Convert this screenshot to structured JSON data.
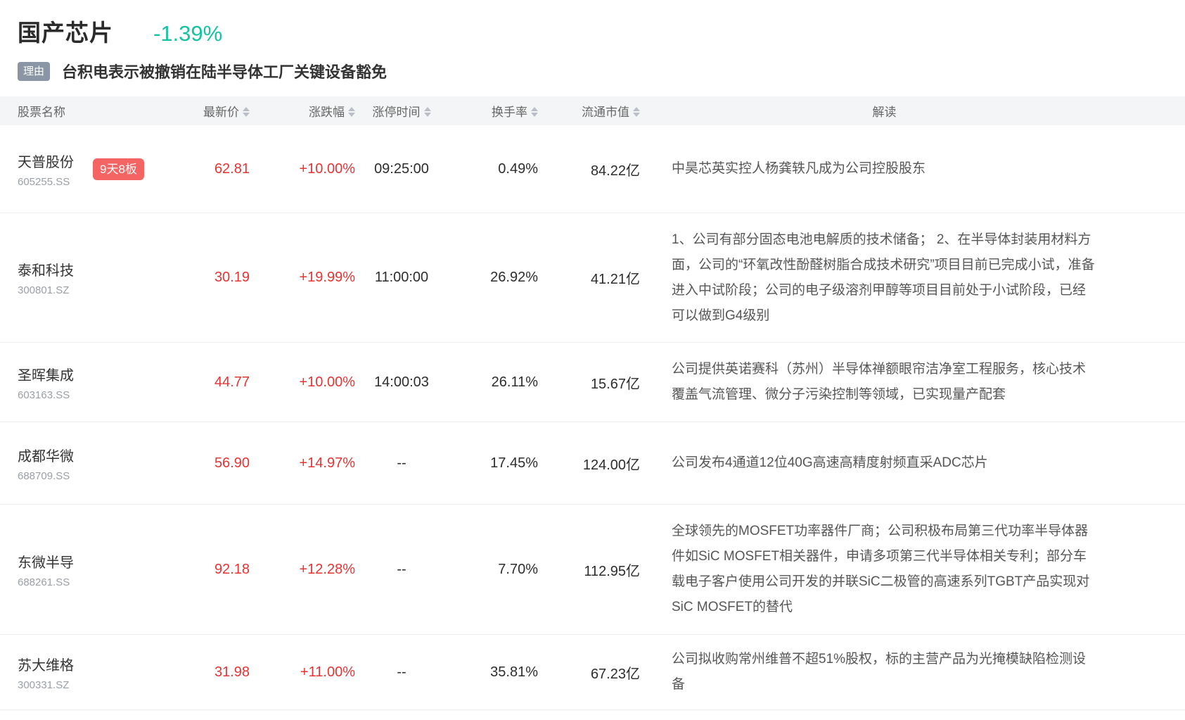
{
  "header": {
    "sector_name": "国产芯片",
    "sector_change": "-1.39%",
    "reason_badge_label": "理由",
    "reason_text": "台积电表示被撤销在陆半导体工厂关键设备豁免"
  },
  "colors": {
    "sector_change_green": "#16c3a0",
    "price_up_red": "#e83333",
    "streak_badge_red": "#f46462",
    "reason_badge_gray": "#8a95a5",
    "table_header_bg": "#f4f5f6"
  },
  "table": {
    "columns": [
      {
        "key": "name",
        "label": "股票名称",
        "sortable": false
      },
      {
        "key": "price",
        "label": "最新价",
        "sortable": true
      },
      {
        "key": "change",
        "label": "涨跌幅",
        "sortable": true
      },
      {
        "key": "limit_time",
        "label": "涨停时间",
        "sortable": true
      },
      {
        "key": "turnover",
        "label": "换手率",
        "sortable": true
      },
      {
        "key": "market_cap",
        "label": "流通市值",
        "sortable": true
      },
      {
        "key": "interp",
        "label": "解读",
        "sortable": false
      }
    ],
    "rows": [
      {
        "name": "天普股份",
        "code": "605255.SS",
        "tag": "9天8板",
        "price": "62.81",
        "change": "+10.00%",
        "limit_time": "09:25:00",
        "turnover": "0.49%",
        "market_cap": "84.22亿",
        "interp": "中昊芯英实控人杨龚轶凡成为公司控股股东"
      },
      {
        "name": "泰和科技",
        "code": "300801.SZ",
        "tag": "",
        "price": "30.19",
        "change": "+19.99%",
        "limit_time": "11:00:00",
        "turnover": "26.92%",
        "market_cap": "41.21亿",
        "interp": "1、公司有部分固态电池电解质的技术储备； 2、在半导体封装用材料方面，公司的“环氧改性酚醛树脂合成技术研究”项目目前已完成小试，准备进入中试阶段；公司的电子级溶剂甲醇等项目目前处于小试阶段，已经可以做到G4级别"
      },
      {
        "name": "圣晖集成",
        "code": "603163.SS",
        "tag": "",
        "price": "44.77",
        "change": "+10.00%",
        "limit_time": "14:00:03",
        "turnover": "26.11%",
        "market_cap": "15.67亿",
        "interp": "公司提供英诺赛科（苏州）半导体禅额眼帘洁净室工程服务，核心技术覆盖气流管理、微分子污染控制等领域，已实现量产配套"
      },
      {
        "name": "成都华微",
        "code": "688709.SS",
        "tag": "",
        "price": "56.90",
        "change": "+14.97%",
        "limit_time": "--",
        "turnover": "17.45%",
        "market_cap": "124.00亿",
        "interp": "公司发布4通道12位40G高速高精度射频直采ADC芯片"
      },
      {
        "name": "东微半导",
        "code": "688261.SS",
        "tag": "",
        "price": "92.18",
        "change": "+12.28%",
        "limit_time": "--",
        "turnover": "7.70%",
        "market_cap": "112.95亿",
        "interp": "全球领先的MOSFET功率器件厂商；公司积极布局第三代功率半导体器件如SiC MOSFET相关器件，申请多项第三代半导体相关专利；部分车载电子客户使用公司开发的并联SiC二极管的高速系列TGBT产品实现对SiC MOSFET的替代"
      },
      {
        "name": "苏大维格",
        "code": "300331.SZ",
        "tag": "",
        "price": "31.98",
        "change": "+11.00%",
        "limit_time": "--",
        "turnover": "35.81%",
        "market_cap": "67.23亿",
        "interp": "公司拟收购常州维普不超51%股权，标的主营产品为光掩模缺陷检测设备"
      }
    ]
  }
}
